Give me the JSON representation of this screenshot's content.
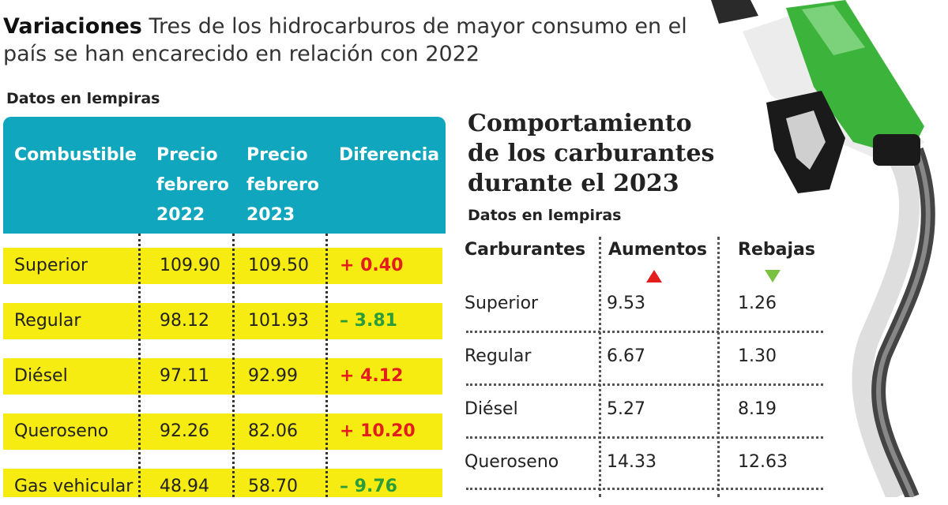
{
  "headline": {
    "bold": "Variaciones",
    "text": "Tres de los hidrocarburos de mayor consumo en el país se han encarecido en relación con 2022"
  },
  "left_table": {
    "note": "Datos en lempiras",
    "columns": [
      "Combustible",
      "Precio febrero 2022",
      "Precio febrero 2023",
      "Diferencia"
    ],
    "header_col2": [
      "Precio",
      "febrero",
      "2022"
    ],
    "header_col3": [
      "Precio",
      "febrero",
      "2023"
    ],
    "rows": [
      {
        "name": "Superior",
        "p2022": "109.90",
        "p2023": "109.50",
        "diff": "+ 0.40"
      },
      {
        "name": "Regular",
        "p2022": "98.12",
        "p2023": "101.93",
        "diff": "– 3.81"
      },
      {
        "name": "Diésel",
        "p2022": "97.11",
        "p2023": "92.99",
        "diff": "+ 4.12"
      },
      {
        "name": "Queroseno",
        "p2022": "92.26",
        "p2023": "82.06",
        "diff": "+ 10.20"
      },
      {
        "name": "Gas vehicular",
        "p2022": "48.94",
        "p2023": "58.70",
        "diff": "– 9.76"
      }
    ]
  },
  "right_table": {
    "title": "Comportamiento de los carburantes durante el 2023",
    "note": "Datos en lempiras",
    "columns": [
      "Carburantes",
      "Aumentos",
      "Rebajas"
    ],
    "rows": [
      {
        "name": "Superior",
        "aumentos": "9.53",
        "rebajas": "1.26"
      },
      {
        "name": "Regular",
        "aumentos": "6.67",
        "rebajas": "1.30"
      },
      {
        "name": "Diésel",
        "aumentos": "5.27",
        "rebajas": "8.19"
      },
      {
        "name": "Queroseno",
        "aumentos": "14.33",
        "rebajas": "12.63"
      }
    ]
  },
  "colors": {
    "header_teal": "#10a6bd",
    "row_yellow": "#f6ec12",
    "increase_red": "#e31c1c",
    "decrease_green": "#2a9d3a",
    "pump_green": "#3cb43c"
  },
  "icons": [
    "up-triangle-icon",
    "down-triangle-icon",
    "fuel-nozzle-icon"
  ],
  "chart_data": [
    {
      "type": "table",
      "title": "",
      "columns": [
        "Combustible",
        "Precio febrero 2022",
        "Precio febrero 2023",
        "Diferencia"
      ],
      "rows": [
        [
          "Superior",
          109.9,
          109.5,
          0.4
        ],
        [
          "Regular",
          98.12,
          101.93,
          -3.81
        ],
        [
          "Diésel",
          97.11,
          92.99,
          4.12
        ],
        [
          "Queroseno",
          92.26,
          82.06,
          10.2
        ],
        [
          "Gas vehicular",
          48.94,
          58.7,
          -9.76
        ]
      ]
    },
    {
      "type": "table",
      "title": "Comportamiento de los carburantes durante el 2023",
      "columns": [
        "Carburantes",
        "Aumentos",
        "Rebajas"
      ],
      "rows": [
        [
          "Superior",
          9.53,
          1.26
        ],
        [
          "Regular",
          6.67,
          1.3
        ],
        [
          "Diésel",
          5.27,
          8.19
        ],
        [
          "Queroseno",
          14.33,
          12.63
        ]
      ]
    }
  ]
}
